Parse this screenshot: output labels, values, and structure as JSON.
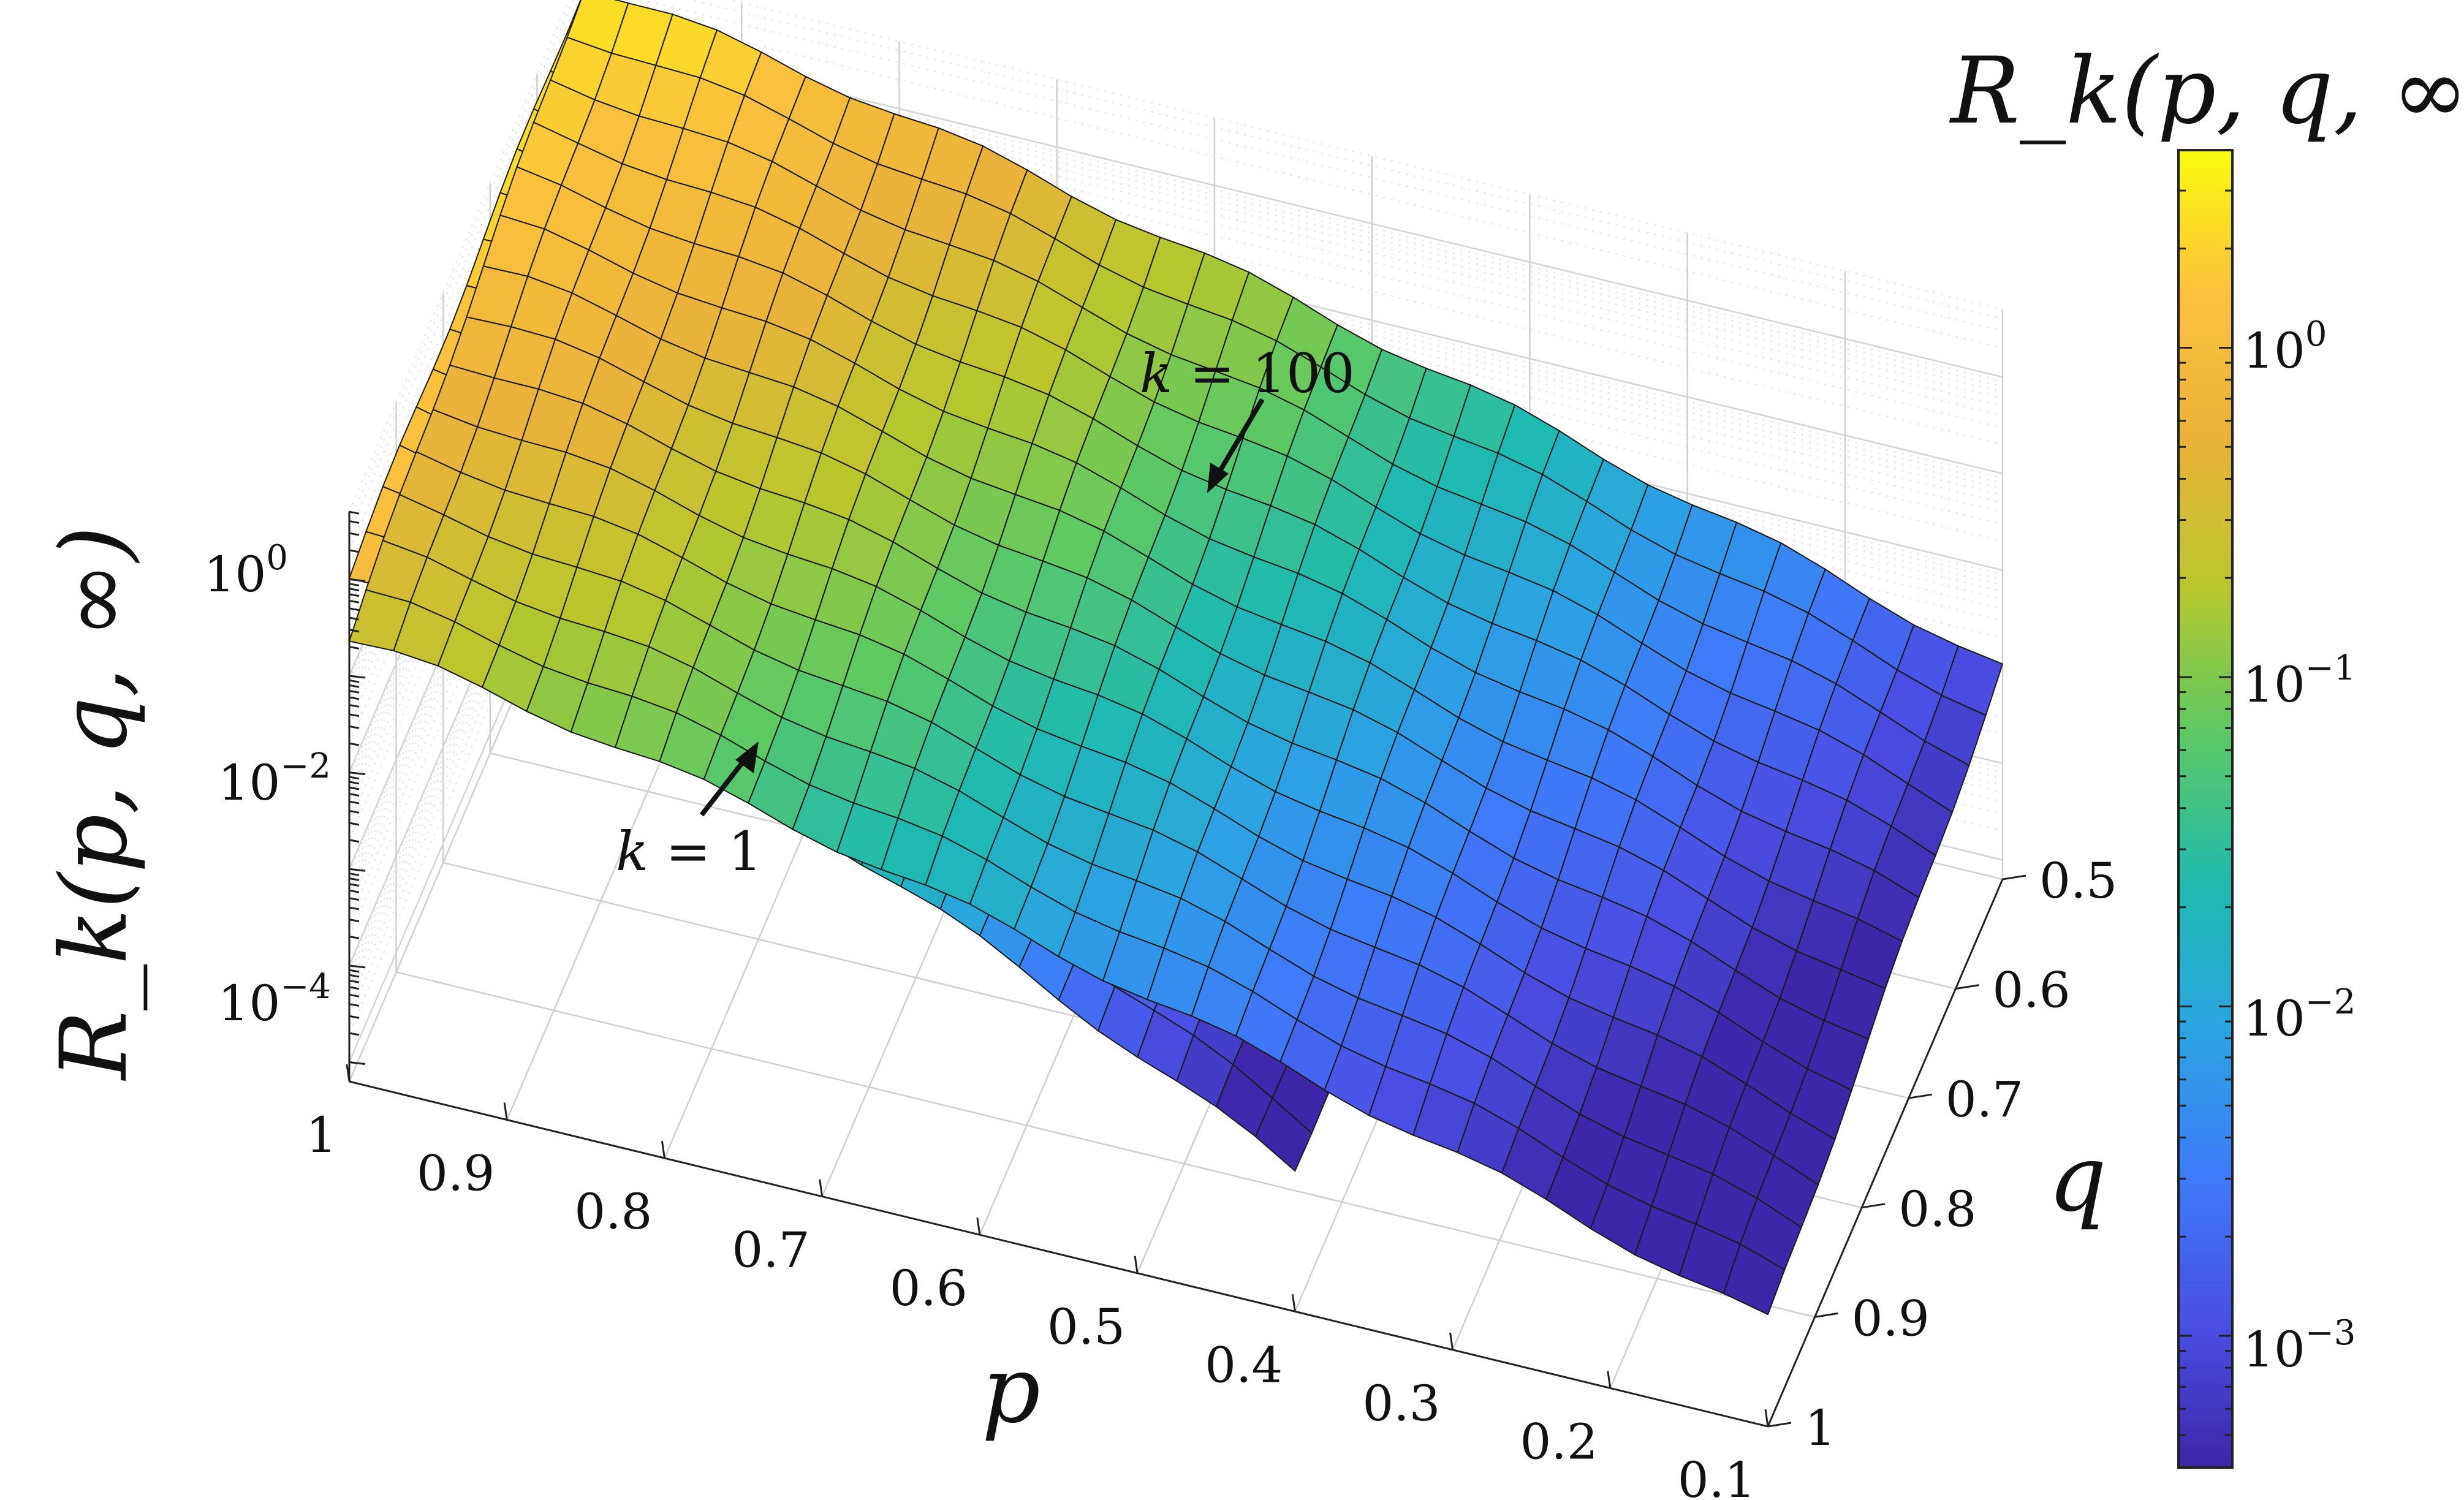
{
  "chart_data": {
    "type": "surface",
    "zlabel": "R_k(p, q, ∞)",
    "xlabel": "p",
    "ylabel": "q",
    "colorbar_label": "R_k(p, q, ∞)",
    "x_ticks": [
      "1",
      "0.9",
      "0.8",
      "0.7",
      "0.6",
      "0.5",
      "0.4",
      "0.3",
      "0.2",
      "0.1"
    ],
    "x_tick_values": [
      1,
      0.9,
      0.8,
      0.7,
      0.6,
      0.5,
      0.4,
      0.3,
      0.2,
      0.1
    ],
    "xlim": [
      0.1,
      1
    ],
    "y_ticks": [
      "0.5",
      "0.6",
      "0.7",
      "0.8",
      "0.9",
      "1"
    ],
    "y_tick_values": [
      0.5,
      0.6,
      0.7,
      0.8,
      0.9,
      1
    ],
    "ylim": [
      0.5,
      1
    ],
    "z_scale": "log",
    "z_ticks": [
      {
        "base": "10",
        "exp": "0",
        "value": 1
      },
      {
        "base": "10",
        "exp": "−2",
        "value": 0.01
      },
      {
        "base": "10",
        "exp": "−4",
        "value": 0.0001
      }
    ],
    "colorbar_ticks": [
      {
        "base": "10",
        "exp": "0",
        "value": 1
      },
      {
        "base": "10",
        "exp": "−1",
        "value": 0.1
      },
      {
        "base": "10",
        "exp": "−2",
        "value": 0.01
      },
      {
        "base": "10",
        "exp": "−3",
        "value": 0.001
      }
    ],
    "colormap": [
      "#3e26a8",
      "#4a4fe3",
      "#3e7bf9",
      "#2ba3e2",
      "#1fbab0",
      "#5ec962",
      "#b9c72c",
      "#eab23b",
      "#fcc13c",
      "#f9fb0e"
    ],
    "annotations": [
      {
        "k_label": "k",
        "eq": " = ",
        "k_value": "100"
      },
      {
        "k_label": "k",
        "eq": " = ",
        "k_value": "1"
      }
    ],
    "grid": true,
    "surfaces": [
      {
        "k": 1,
        "p_range": [
          0.4,
          1
        ],
        "q_range": [
          0.5,
          1
        ],
        "z_at_p1": 3,
        "z_at_p_min": 0.0005
      },
      {
        "k": 100,
        "p_range": [
          0.1,
          1
        ],
        "q_range": [
          0.5,
          1
        ],
        "z_at_p1": 3,
        "z_at_p_min": 0.001
      }
    ]
  }
}
